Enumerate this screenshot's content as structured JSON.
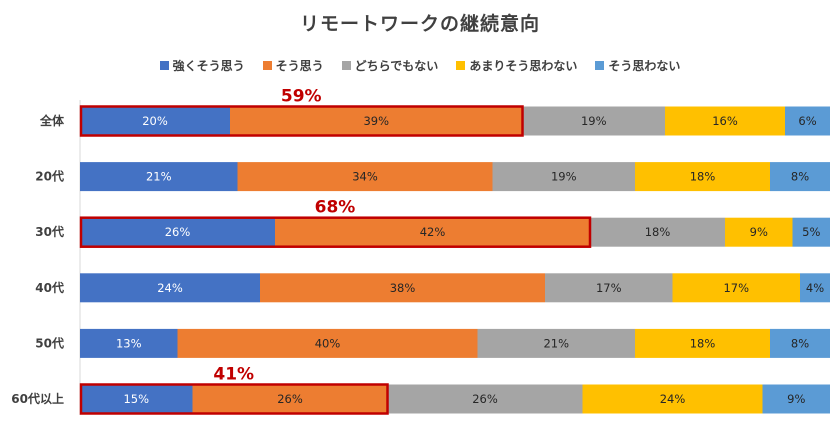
{
  "chart_data": {
    "type": "bar",
    "orientation": "horizontal",
    "stacked": true,
    "title": "リモートワークの継続意向",
    "legend_position": "top",
    "categories": [
      "全体",
      "20代",
      "30代",
      "40代",
      "50代",
      "60代以上"
    ],
    "series": [
      {
        "name": "強くそう思う",
        "color": "#4472C4",
        "values": [
          20,
          21,
          26,
          24,
          13,
          15
        ]
      },
      {
        "name": "そう思う",
        "color": "#ED7D31",
        "values": [
          39,
          34,
          42,
          38,
          40,
          26
        ]
      },
      {
        "name": "どちらでもない",
        "color": "#A5A5A5",
        "values": [
          19,
          19,
          18,
          17,
          21,
          26
        ]
      },
      {
        "name": "あまりそう思わない",
        "color": "#FFC000",
        "values": [
          16,
          18,
          9,
          17,
          18,
          24
        ]
      },
      {
        "name": "そう思わない",
        "color": "#5B9BD5",
        "values": [
          6,
          8,
          5,
          4,
          8,
          9
        ]
      }
    ],
    "value_suffix": "%",
    "highlights": [
      {
        "category_index": 0,
        "series_count": 2,
        "label": "59%"
      },
      {
        "category_index": 2,
        "series_count": 2,
        "label": "68%"
      },
      {
        "category_index": 5,
        "series_count": 2,
        "label": "41%"
      }
    ],
    "highlight_color": "#C00000",
    "xlim": [
      0,
      100
    ],
    "grid": false
  }
}
